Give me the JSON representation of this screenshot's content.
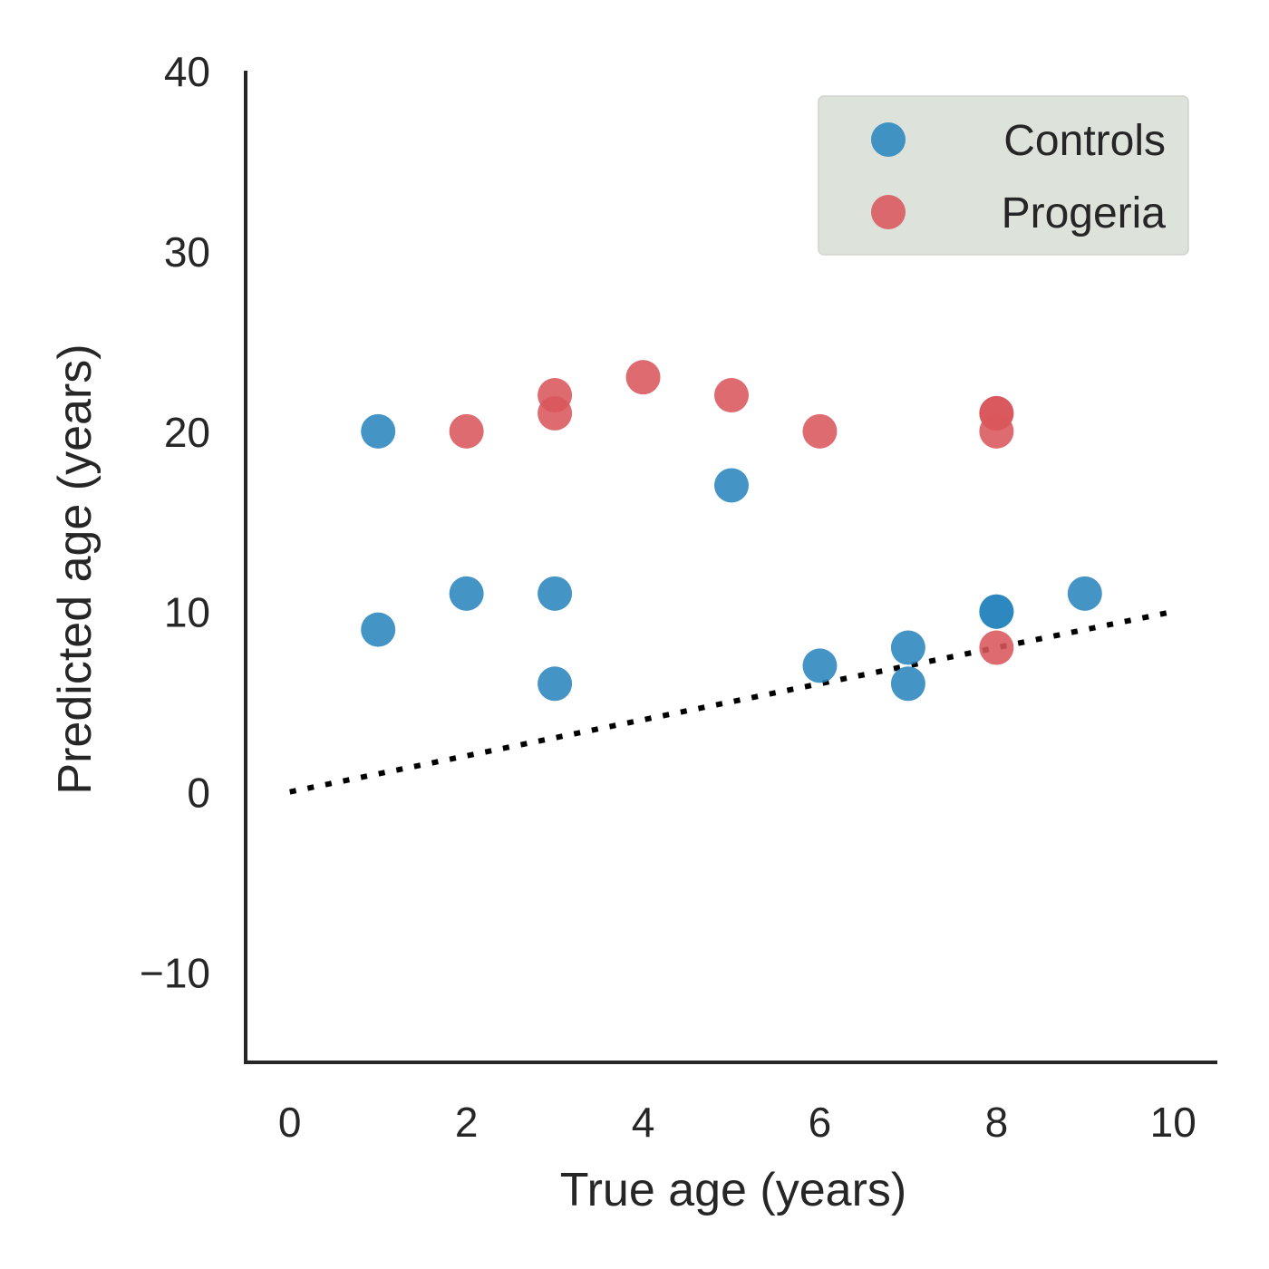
{
  "chart_data": {
    "type": "scatter",
    "xlabel": "True age (years)",
    "ylabel": "Predicted age (years)",
    "xlim": [
      -0.5,
      10.5
    ],
    "ylim": [
      -15,
      40
    ],
    "xticks": [
      0,
      2,
      4,
      6,
      8,
      10
    ],
    "yticks": [
      -10,
      0,
      10,
      20,
      30,
      40
    ],
    "xtick_labels": [
      "0",
      "2",
      "4",
      "6",
      "8",
      "10"
    ],
    "ytick_labels": [
      "−10",
      "0",
      "10",
      "20",
      "30",
      "40"
    ],
    "grid": false,
    "legend_position": "top-right",
    "reference_line": {
      "style": "dotted",
      "color": "#000000",
      "x": [
        0,
        10
      ],
      "y": [
        0,
        10
      ]
    },
    "series": [
      {
        "name": "Controls",
        "color": "#2a86be",
        "points": [
          [
            1,
            20
          ],
          [
            1,
            9
          ],
          [
            2,
            11
          ],
          [
            3,
            11
          ],
          [
            3,
            6
          ],
          [
            5,
            17
          ],
          [
            6,
            7
          ],
          [
            7,
            8
          ],
          [
            7,
            6
          ],
          [
            8,
            10
          ],
          [
            8,
            10
          ],
          [
            9,
            11
          ]
        ]
      },
      {
        "name": "Progeria",
        "color": "#d9575c",
        "points": [
          [
            2,
            20
          ],
          [
            3,
            22
          ],
          [
            3,
            21
          ],
          [
            4,
            23
          ],
          [
            5,
            22
          ],
          [
            6,
            20
          ],
          [
            8,
            21
          ],
          [
            8,
            21
          ],
          [
            8,
            20
          ],
          [
            8,
            8
          ]
        ]
      }
    ]
  }
}
